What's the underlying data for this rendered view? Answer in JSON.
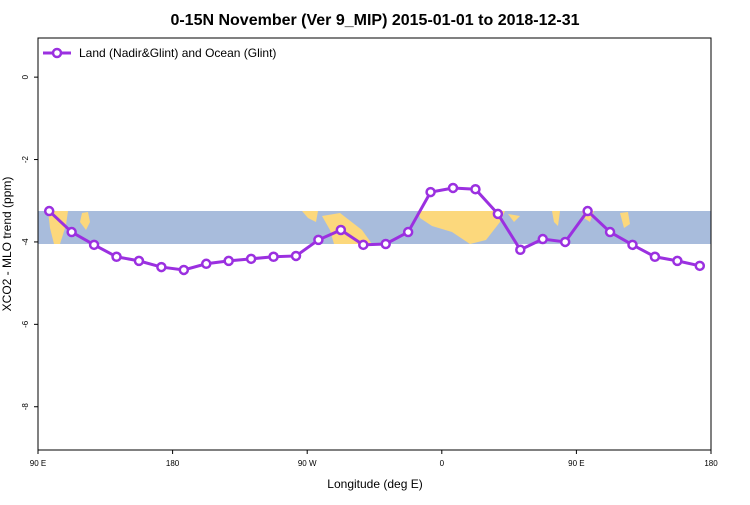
{
  "chart_data": {
    "type": "line",
    "title": "0-15N November (Ver 9_MIP)   2015-01-01 to 2018-12-31",
    "xlabel": "Longitude (deg E)",
    "ylabel": "XCO2 - MLO trend (ppm)",
    "x": [
      97.5,
      112.5,
      127.5,
      142.5,
      157.5,
      172.5,
      187.5,
      202.5,
      217.5,
      232.5,
      247.5,
      262.5,
      277.5,
      292.5,
      307.5,
      322.5,
      337.5,
      352.5,
      367.5,
      382.5,
      397.5,
      412.5,
      427.5,
      442.5,
      457.5,
      472.5,
      487.5,
      502.5,
      517.5,
      532.5
    ],
    "series": [
      {
        "name": "Land (Nadir&Glint) and Ocean (Glint)",
        "color": "#9b30e0",
        "values": [
          -3.25,
          -3.76,
          -4.07,
          -4.36,
          -4.46,
          -4.61,
          -4.68,
          -4.53,
          -4.46,
          -4.41,
          -4.36,
          -4.34,
          -3.95,
          -3.71,
          -4.07,
          -4.05,
          -3.76,
          -2.79,
          -2.69,
          -2.72,
          -3.32,
          -4.19,
          -3.93,
          -4.0,
          -3.25,
          -3.76,
          -4.07,
          -4.36,
          -4.46,
          -4.58
        ]
      }
    ],
    "xlim": [
      90,
      540
    ],
    "xticks": [
      {
        "value": 90,
        "label": "90 E"
      },
      180,
      {
        "value": 270,
        "label": "90 W"
      },
      {
        "value": 360,
        "label": "0"
      },
      {
        "value": 450,
        "label": "90 E"
      },
      {
        "value": 540,
        "label": "180"
      }
    ],
    "ylim": [
      -9.05,
      0.95
    ],
    "yticks": [
      0,
      -2,
      -4,
      -6,
      -8
    ],
    "legend": "top-left"
  }
}
